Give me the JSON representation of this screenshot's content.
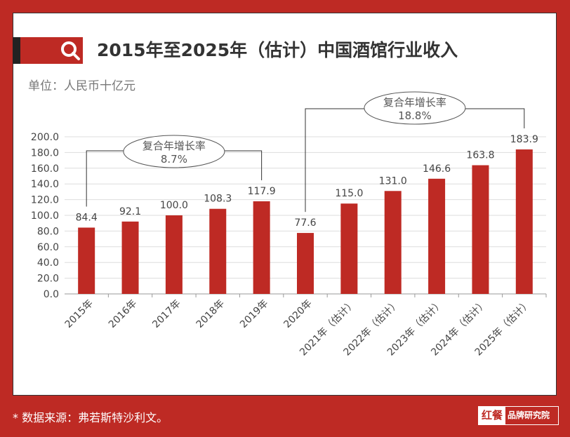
{
  "header": {
    "title": "2015年至2025年（估计）中国酒馆行业收入",
    "unit": "单位：人民币十亿元"
  },
  "footer": {
    "source": "* 数据来源：弗若斯特沙利文。",
    "logo_mark": "红餐",
    "logo_text": "品牌研究院"
  },
  "colors": {
    "bar": "#be2a24",
    "frame": "#be2a24"
  },
  "chart_data": {
    "type": "bar",
    "title": "2015年至2025年（估计）中国酒馆行业收入",
    "ylabel": "单位：人民币十亿元",
    "categories": [
      "2015年",
      "2016年",
      "2017年",
      "2018年",
      "2019年",
      "2020年",
      "2021年（估计）",
      "2022年（估计）",
      "2023年（估计）",
      "2024年（估计）",
      "2025年（估计）"
    ],
    "values": [
      84.4,
      92.1,
      100.0,
      108.3,
      117.9,
      77.6,
      115.0,
      131.0,
      146.6,
      163.8,
      183.9
    ],
    "ylim": [
      0,
      200
    ],
    "yticks": [
      "0.0",
      "20.0",
      "40.0",
      "60.0",
      "80.0",
      "100.0",
      "120.0",
      "140.0",
      "160.0",
      "180.0",
      "200.0"
    ],
    "grid": true,
    "annotations": [
      {
        "label": "复合年增长率",
        "value": "8.7%",
        "from": "2015年",
        "to": "2019年"
      },
      {
        "label": "复合年增长率",
        "value": "18.8%",
        "from": "2020年",
        "to": "2025年（估计）"
      }
    ]
  }
}
